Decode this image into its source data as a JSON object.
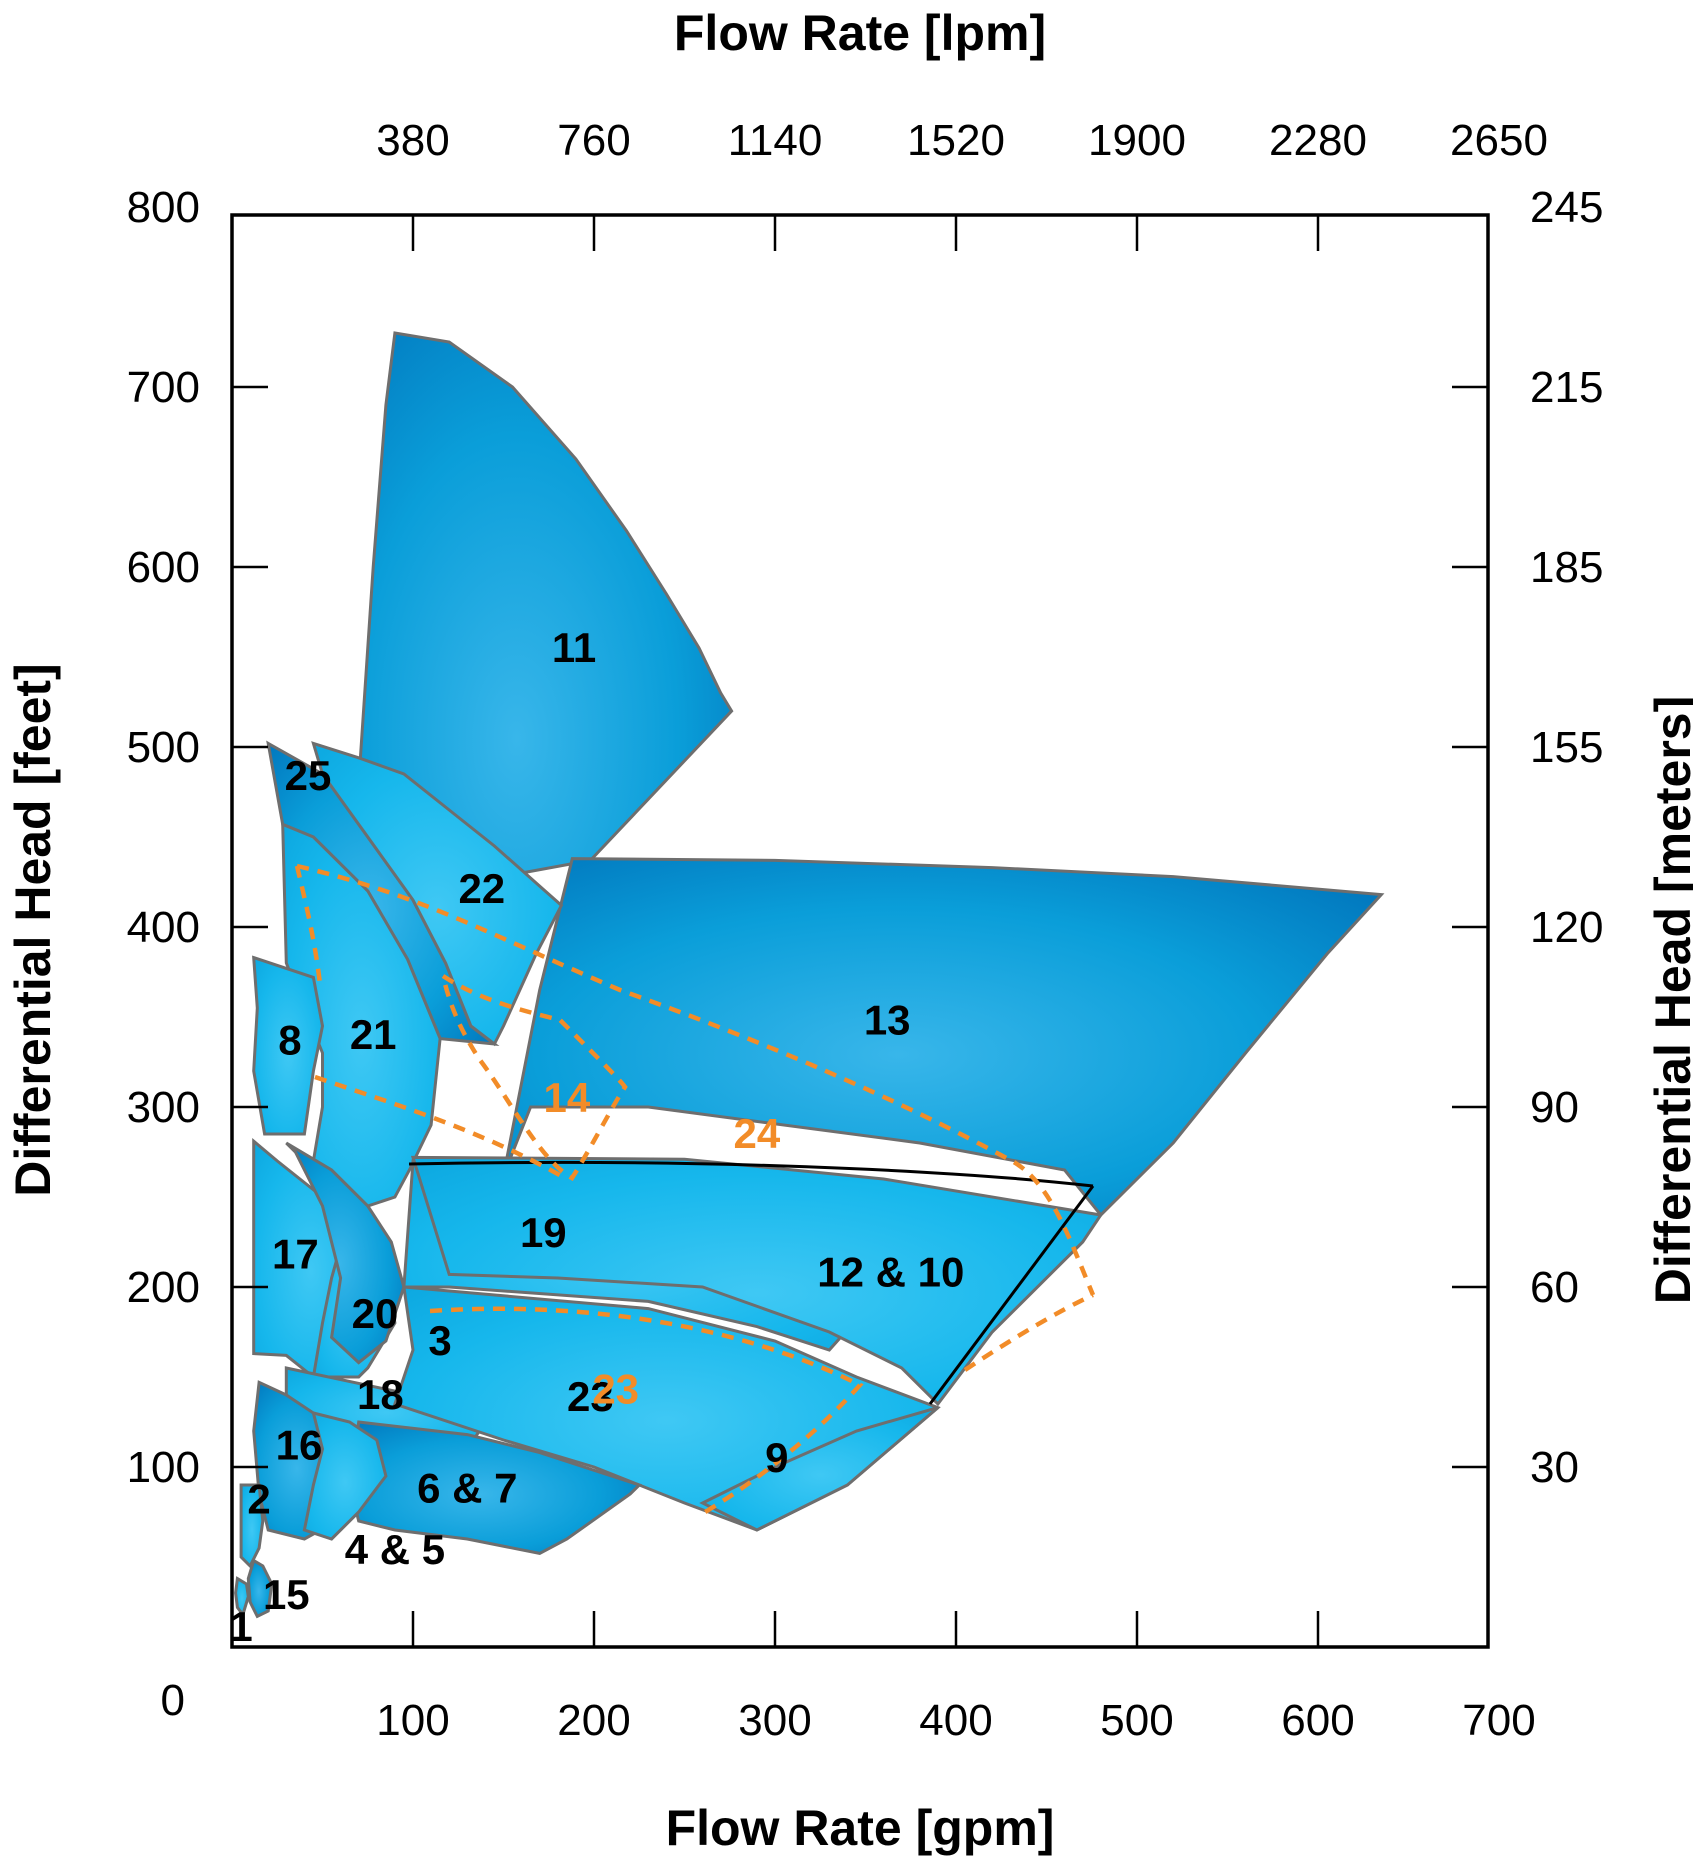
{
  "chart_data": {
    "type": "area",
    "title": "",
    "x_bottom": {
      "label": "Flow Rate [gpm]",
      "range": [
        0,
        700
      ],
      "ticks": [
        100,
        200,
        300,
        400,
        500,
        600,
        700
      ]
    },
    "x_top": {
      "label": "Flow Rate [lpm]",
      "ticks": [
        "380",
        "760",
        "1140",
        "1520",
        "1900",
        "2280",
        "2650"
      ],
      "gpm_positions": [
        100,
        200,
        300,
        400,
        500,
        600,
        700
      ]
    },
    "y_left": {
      "label": "Differential Head  [feet]",
      "range": [
        0,
        800
      ],
      "ticks": [
        0,
        100,
        200,
        300,
        400,
        500,
        600,
        700,
        800
      ]
    },
    "y_right": {
      "label": "Differential Head [meters]",
      "ticks": [
        "245",
        "215",
        "185",
        "155",
        "120",
        "90",
        "60",
        "30"
      ],
      "feet_positions": [
        800,
        700,
        600,
        500,
        400,
        300,
        200,
        100
      ]
    },
    "colors": {
      "light_blue": "#1EBDF0",
      "mid_blue": "#0A9ED9",
      "dark_blue": "#0070B8",
      "orange": "#F28C28",
      "outline": "#6E6E6E"
    },
    "zones": [
      {
        "label": "11",
        "outline": [
          [
            90,
            730
          ],
          [
            120,
            725
          ],
          [
            155,
            700
          ],
          [
            190,
            660
          ],
          [
            218,
            620
          ],
          [
            240,
            585
          ],
          [
            258,
            555
          ],
          [
            270,
            530
          ],
          [
            276,
            520
          ],
          [
            198,
            437
          ],
          [
            160,
            430
          ],
          [
            140,
            405
          ],
          [
            125,
            385
          ],
          [
            113,
            360
          ],
          [
            100,
            325
          ],
          [
            60,
            320
          ],
          [
            70,
            480
          ],
          [
            78,
            600
          ],
          [
            85,
            690
          ]
        ],
        "fill": "dark",
        "label_pos": [
          189,
          555
        ]
      },
      {
        "label": "13",
        "outline": [
          [
            188,
            438
          ],
          [
            300,
            437
          ],
          [
            420,
            433
          ],
          [
            520,
            428
          ],
          [
            635,
            418
          ],
          [
            605,
            385
          ],
          [
            560,
            330
          ],
          [
            520,
            280
          ],
          [
            480,
            240
          ],
          [
            460,
            265
          ],
          [
            380,
            280
          ],
          [
            230,
            300
          ],
          [
            165,
            300
          ],
          [
            150,
            262
          ],
          [
            170,
            365
          ]
        ],
        "fill": "dark",
        "label_pos": [
          362,
          348
        ]
      },
      {
        "label": "25",
        "outline": [
          [
            20,
            502
          ],
          [
            50,
            485
          ],
          [
            75,
            450
          ],
          [
            100,
            415
          ],
          [
            118,
            380
          ],
          [
            132,
            345
          ],
          [
            145,
            335
          ],
          [
            115,
            338
          ],
          [
            97,
            382
          ],
          [
            75,
            420
          ],
          [
            45,
            450
          ],
          [
            28,
            457
          ]
        ],
        "fill": "dark",
        "label_pos": [
          42,
          484
        ]
      },
      {
        "label": "22",
        "outline": [
          [
            45,
            502
          ],
          [
            70,
            494
          ],
          [
            95,
            485
          ],
          [
            120,
            465
          ],
          [
            145,
            445
          ],
          [
            182,
            412
          ],
          [
            168,
            385
          ],
          [
            150,
            345
          ],
          [
            145,
            335
          ],
          [
            132,
            345
          ],
          [
            118,
            380
          ],
          [
            100,
            415
          ],
          [
            75,
            450
          ],
          [
            50,
            485
          ]
        ],
        "fill": "light",
        "label_pos": [
          138,
          421
        ]
      },
      {
        "label": "21",
        "outline": [
          [
            28,
            457
          ],
          [
            45,
            450
          ],
          [
            75,
            420
          ],
          [
            97,
            382
          ],
          [
            115,
            338
          ],
          [
            110,
            290
          ],
          [
            98,
            265
          ],
          [
            90,
            250
          ],
          [
            60,
            240
          ],
          [
            45,
            270
          ],
          [
            50,
            300
          ],
          [
            50,
            330
          ],
          [
            30,
            380
          ]
        ],
        "fill": "light",
        "label_pos": [
          78,
          340
        ]
      },
      {
        "label": "8",
        "outline": [
          [
            12,
            383
          ],
          [
            45,
            372
          ],
          [
            50,
            345
          ],
          [
            45,
            320
          ],
          [
            40,
            285
          ],
          [
            18,
            285
          ],
          [
            12,
            320
          ],
          [
            14,
            355
          ]
        ],
        "fill": "light",
        "label_pos": [
          32,
          337
        ]
      },
      {
        "label": "19",
        "outline": [
          [
            100,
            270
          ],
          [
            140,
            262
          ],
          [
            220,
            240
          ],
          [
            300,
            210
          ],
          [
            345,
            182
          ],
          [
            330,
            165
          ],
          [
            290,
            178
          ],
          [
            230,
            192
          ],
          [
            120,
            200
          ],
          [
            95,
            200
          ]
        ],
        "fill": "light",
        "label_pos": [
          172,
          230
        ]
      },
      {
        "label": "12 & 10",
        "outline": [
          [
            100,
            272
          ],
          [
            250,
            271
          ],
          [
            360,
            260
          ],
          [
            480,
            240
          ],
          [
            470,
            225
          ],
          [
            420,
            175
          ],
          [
            390,
            135
          ],
          [
            370,
            155
          ],
          [
            330,
            175
          ],
          [
            260,
            200
          ],
          [
            180,
            205
          ],
          [
            120,
            207
          ]
        ],
        "fill": "light",
        "label_pos": [
          364,
          208
        ]
      },
      {
        "label": "17",
        "outline": [
          [
            12,
            281
          ],
          [
            25,
            270
          ],
          [
            50,
            250
          ],
          [
            65,
            225
          ],
          [
            75,
            200
          ],
          [
            60,
            150
          ],
          [
            45,
            150
          ],
          [
            30,
            162
          ],
          [
            12,
            163
          ],
          [
            12,
            230
          ]
        ],
        "fill": "light",
        "label_pos": [
          35,
          218
        ]
      },
      {
        "label": "20",
        "outline": [
          [
            62,
            230
          ],
          [
            85,
            210
          ],
          [
            90,
            180
          ],
          [
            75,
            155
          ],
          [
            70,
            150
          ],
          [
            60,
            150
          ],
          [
            45,
            150
          ],
          [
            50,
            180
          ],
          [
            55,
            205
          ]
        ],
        "fill": "light",
        "label_pos": [
          79,
          185
        ]
      },
      {
        "label": "3",
        "outline": [
          [
            30,
            280
          ],
          [
            55,
            265
          ],
          [
            75,
            245
          ],
          [
            88,
            225
          ],
          [
            95,
            200
          ],
          [
            85,
            170
          ],
          [
            70,
            158
          ],
          [
            55,
            172
          ],
          [
            60,
            205
          ],
          [
            50,
            245
          ],
          [
            35,
            275
          ]
        ],
        "fill": "dark",
        "label_pos": [
          115,
          170
        ]
      },
      {
        "label": "18",
        "outline": [
          [
            30,
            155
          ],
          [
            100,
            140
          ],
          [
            140,
            125
          ],
          [
            130,
            110
          ],
          [
            100,
            115
          ],
          [
            60,
            120
          ],
          [
            30,
            125
          ]
        ],
        "fill": "light",
        "label_pos": [
          82,
          140
        ]
      },
      {
        "label": "23",
        "outline": [
          [
            95,
            200
          ],
          [
            230,
            188
          ],
          [
            300,
            170
          ],
          [
            345,
            150
          ],
          [
            390,
            133
          ],
          [
            340,
            90
          ],
          [
            290,
            65
          ],
          [
            250,
            80
          ],
          [
            200,
            100
          ],
          [
            150,
            115
          ],
          [
            90,
            135
          ],
          [
            100,
            165
          ]
        ],
        "fill": "light",
        "label_pos": [
          198,
          139
        ]
      },
      {
        "label": "9",
        "outline": [
          [
            260,
            80
          ],
          [
            300,
            100
          ],
          [
            345,
            120
          ],
          [
            390,
            133
          ],
          [
            340,
            90
          ],
          [
            290,
            65
          ]
        ],
        "fill": "light",
        "label_pos": [
          301,
          105
        ]
      },
      {
        "label": "16",
        "outline": [
          [
            15,
            147
          ],
          [
            30,
            140
          ],
          [
            45,
            130
          ],
          [
            60,
            115
          ],
          [
            65,
            90
          ],
          [
            58,
            70
          ],
          [
            40,
            60
          ],
          [
            20,
            65
          ],
          [
            15,
            85
          ],
          [
            12,
            120
          ]
        ],
        "fill": "dark",
        "label_pos": [
          37,
          112
        ]
      },
      {
        "label": "6 & 7",
        "outline": [
          [
            70,
            125
          ],
          [
            130,
            118
          ],
          [
            170,
            108
          ],
          [
            225,
            90
          ],
          [
            220,
            85
          ],
          [
            185,
            60
          ],
          [
            170,
            52
          ],
          [
            130,
            60
          ],
          [
            90,
            65
          ],
          [
            70,
            70
          ],
          [
            65,
            90
          ]
        ],
        "fill": "dark",
        "label_pos": [
          130,
          88
        ]
      },
      {
        "label": "2",
        "outline": [
          [
            5,
            90
          ],
          [
            15,
            90
          ],
          [
            17,
            70
          ],
          [
            15,
            55
          ],
          [
            10,
            45
          ],
          [
            5,
            50
          ],
          [
            5,
            70
          ]
        ],
        "fill": "light",
        "label_pos": [
          15,
          82
        ]
      },
      {
        "label": "4 & 5",
        "outline": [
          [
            45,
            130
          ],
          [
            65,
            125
          ],
          [
            80,
            115
          ],
          [
            85,
            95
          ],
          [
            70,
            75
          ],
          [
            55,
            60
          ],
          [
            40,
            65
          ],
          [
            45,
            90
          ],
          [
            50,
            110
          ]
        ],
        "fill": "light",
        "label_pos": [
          90,
          54
        ]
      },
      {
        "label": "15",
        "outline": [
          [
            12,
            48
          ],
          [
            17,
            45
          ],
          [
            22,
            35
          ],
          [
            20,
            20
          ],
          [
            14,
            17
          ],
          [
            10,
            25
          ],
          [
            9,
            38
          ]
        ],
        "fill": "dark",
        "label_pos": [
          30,
          29
        ]
      },
      {
        "label": "1",
        "outline": [
          [
            3,
            38
          ],
          [
            8,
            35
          ],
          [
            9,
            28
          ],
          [
            6,
            18
          ],
          [
            3,
            22
          ],
          [
            2,
            30
          ]
        ],
        "fill": "light",
        "label_pos": [
          5,
          11
        ]
      }
    ],
    "dashed_overlays": [
      {
        "label": "14",
        "label_pos": [
          185,
          305
        ]
      },
      {
        "label": "24",
        "label_pos": [
          290,
          285
        ]
      },
      {
        "label": "23",
        "label_pos": [
          212,
          143
        ]
      }
    ]
  }
}
